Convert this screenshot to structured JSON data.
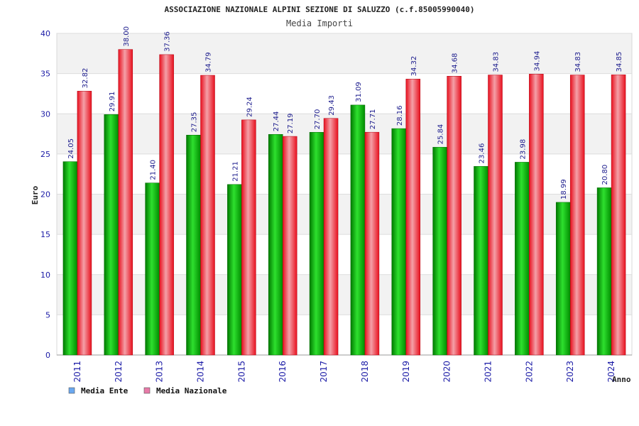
{
  "chart_data": {
    "type": "bar",
    "title": "ASSOCIAZIONE NAZIONALE ALPINI SEZIONE DI SALUZZO (c.f.85005990040)",
    "subtitle": "Media Importi",
    "xlabel": "Anno",
    "ylabel": "Euro",
    "ylim": [
      0,
      40
    ],
    "yticks": [
      0,
      5,
      10,
      15,
      20,
      25,
      30,
      35,
      40
    ],
    "grid": true,
    "legend_position": "bottom-left",
    "categories": [
      "2011",
      "2012",
      "2013",
      "2014",
      "2015",
      "2016",
      "2017",
      "2018",
      "2019",
      "2020",
      "2021",
      "2022",
      "2023",
      "2024"
    ],
    "series": [
      {
        "name": "Media Ente",
        "color": "#00b000",
        "legend_color": "#6aa8f0",
        "values": [
          24.05,
          29.91,
          21.4,
          27.35,
          21.21,
          27.44,
          27.7,
          31.09,
          28.16,
          25.84,
          23.46,
          23.98,
          18.99,
          20.8
        ],
        "labels": [
          "24.05",
          "29.91",
          "21.40",
          "27.35",
          "21.21",
          "27.44",
          "27.70",
          "31.09",
          "28.16",
          "25.84",
          "23.46",
          "23.98",
          "18.99",
          "20.80"
        ]
      },
      {
        "name": "Media Nazionale",
        "color": "#ee1c2a",
        "legend_color": "#e87aa8",
        "values": [
          32.82,
          38.0,
          37.36,
          34.79,
          29.24,
          27.19,
          29.43,
          27.71,
          34.32,
          34.68,
          34.83,
          34.94,
          34.83,
          34.85
        ],
        "labels": [
          "32.82",
          "38.00",
          "37.36",
          "34.79",
          "29.24",
          "27.19",
          "29.43",
          "27.71",
          "34.32",
          "34.68",
          "34.83",
          "34.94",
          "34.83",
          "34.85"
        ]
      }
    ]
  }
}
